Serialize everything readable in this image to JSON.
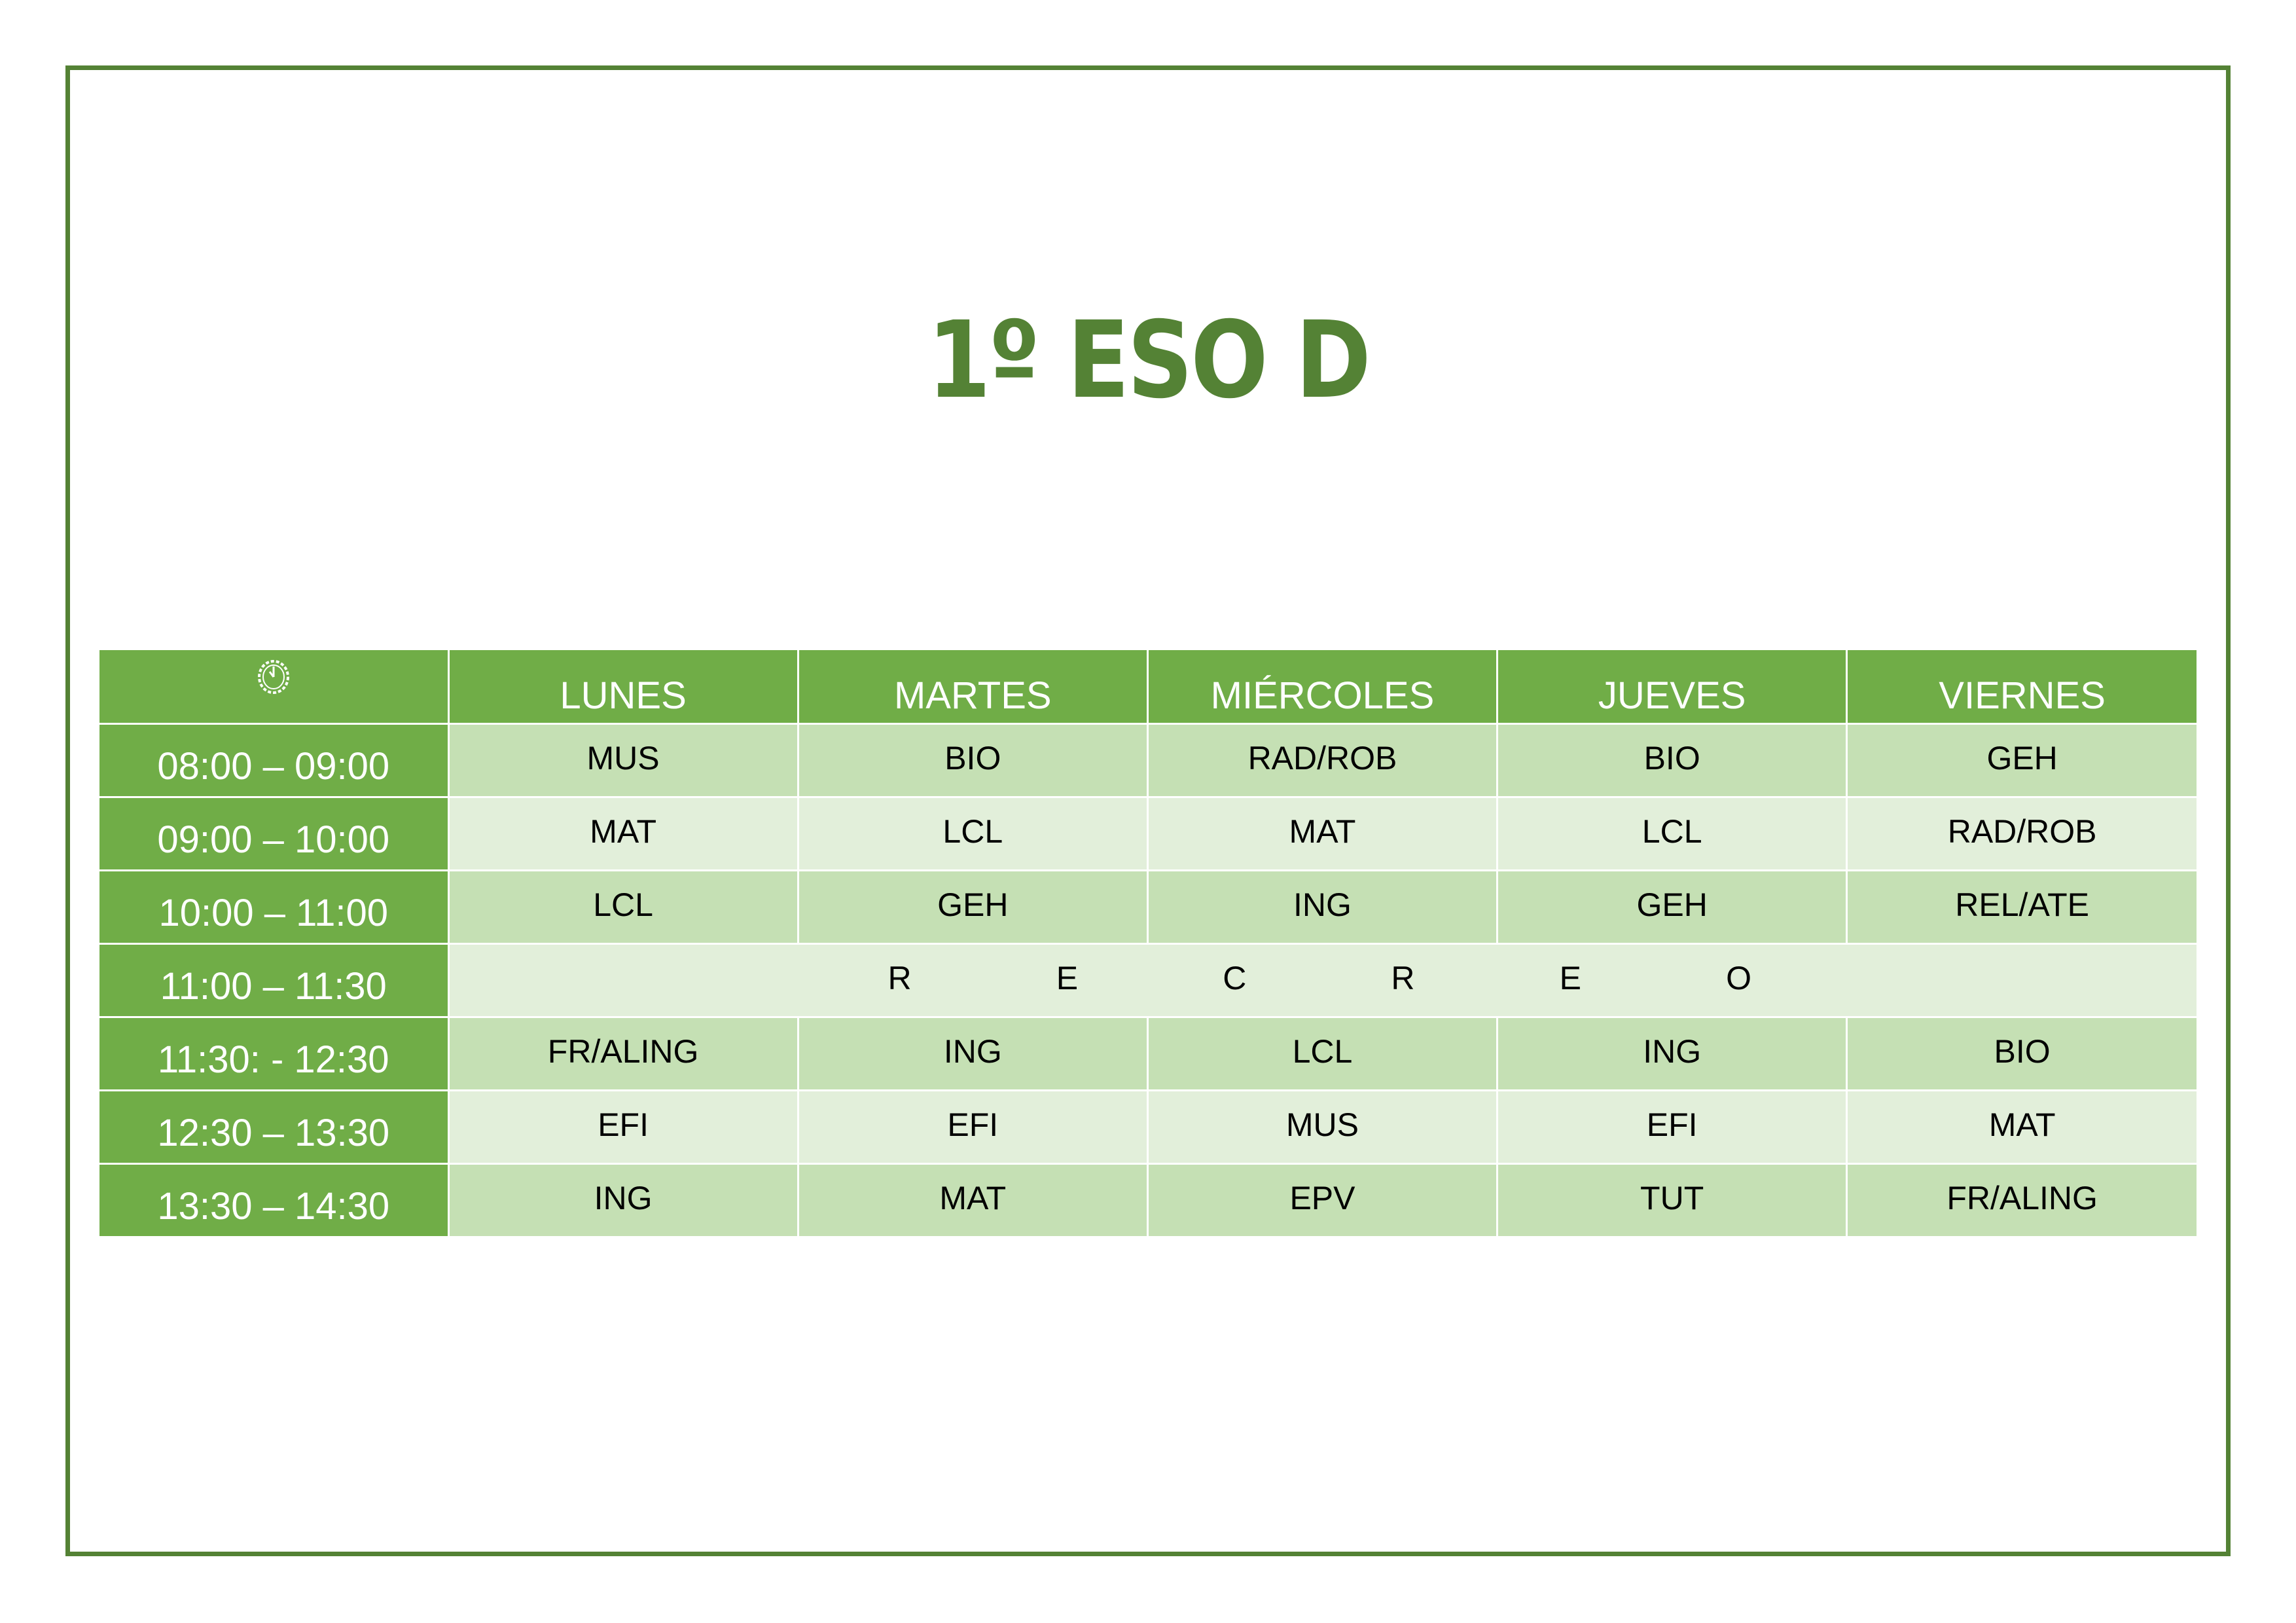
{
  "title": "1º ESO D",
  "colors": {
    "border": "#548235",
    "title": "#548235",
    "header": "#70AD47",
    "row_dark": "#C5E0B4",
    "row_light": "#E2EFDA"
  },
  "header": {
    "clock_icon": "clock-icon",
    "days": [
      "LUNES",
      "MARTES",
      "MIÉRCOLES",
      "JUEVES",
      "VIERNES"
    ]
  },
  "rows": [
    {
      "time": "08:00 – 09:00",
      "cells": [
        "MUS",
        "BIO",
        "RAD/ROB",
        "BIO",
        "GEH"
      ]
    },
    {
      "time": "09:00 – 10:00",
      "cells": [
        "MAT",
        "LCL",
        "MAT",
        "LCL",
        "RAD/ROB"
      ]
    },
    {
      "time": "10:00 – 11:00",
      "cells": [
        "LCL",
        "GEH",
        "ING",
        "GEH",
        "REL/ATE"
      ]
    },
    {
      "time": "11:00 – 11:30",
      "recreo": [
        "R",
        "E",
        "C",
        "R",
        "E",
        "O"
      ]
    },
    {
      "time": "11:30: - 12:30",
      "cells": [
        "FR/ALING",
        "ING",
        "LCL",
        "ING",
        "BIO"
      ]
    },
    {
      "time": "12:30 – 13:30",
      "cells": [
        "EFI",
        "EFI",
        "MUS",
        "EFI",
        "MAT"
      ]
    },
    {
      "time": "13:30 – 14:30",
      "cells": [
        "ING",
        "MAT",
        "EPV",
        "TUT",
        "FR/ALING"
      ]
    }
  ]
}
